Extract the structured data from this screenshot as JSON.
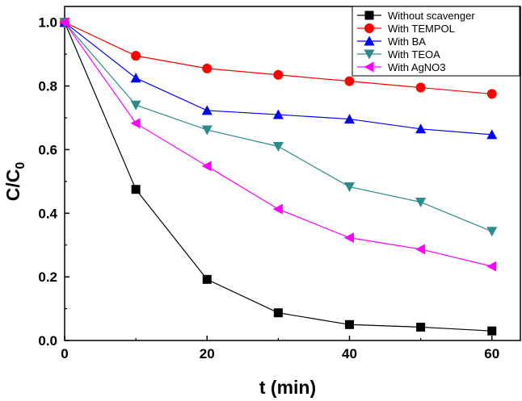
{
  "chart_data": {
    "type": "line",
    "xlabel": "t (min)",
    "ylabel_main": "C/C",
    "ylabel_sub": "0",
    "xlim": [
      0,
      64
    ],
    "ylim": [
      0,
      1.05
    ],
    "xticks": [
      0,
      20,
      40,
      60
    ],
    "yticks": [
      0.0,
      0.2,
      0.4,
      0.6,
      0.8,
      1.0
    ],
    "ytick_labels": [
      "0.0",
      "0.2",
      "0.4",
      "0.6",
      "0.8",
      "1.0"
    ],
    "grid": false,
    "legend_position": "top-right",
    "x": [
      0,
      10,
      20,
      30,
      40,
      50,
      60
    ],
    "series": [
      {
        "name": "Without scavenger",
        "color": "#000000",
        "marker": "square",
        "values": [
          1.0,
          0.475,
          0.192,
          0.087,
          0.05,
          0.042,
          0.03
        ]
      },
      {
        "name": "With TEMPOL",
        "color": "#ff0000",
        "marker": "circle",
        "values": [
          1.0,
          0.895,
          0.855,
          0.835,
          0.815,
          0.795,
          0.775
        ]
      },
      {
        "name": "With BA",
        "color": "#0000ff",
        "marker": "triangle-up",
        "values": [
          1.0,
          0.825,
          0.723,
          0.71,
          0.696,
          0.665,
          0.647
        ]
      },
      {
        "name": "With TEOA",
        "color": "#2e8b8b",
        "marker": "triangle-down",
        "values": [
          1.0,
          0.74,
          0.662,
          0.61,
          0.483,
          0.435,
          0.343
        ]
      },
      {
        "name": "With AgNO3",
        "color": "#ff00ff",
        "marker": "triangle-left",
        "values": [
          1.0,
          0.683,
          0.548,
          0.413,
          0.323,
          0.287,
          0.233
        ]
      }
    ]
  }
}
